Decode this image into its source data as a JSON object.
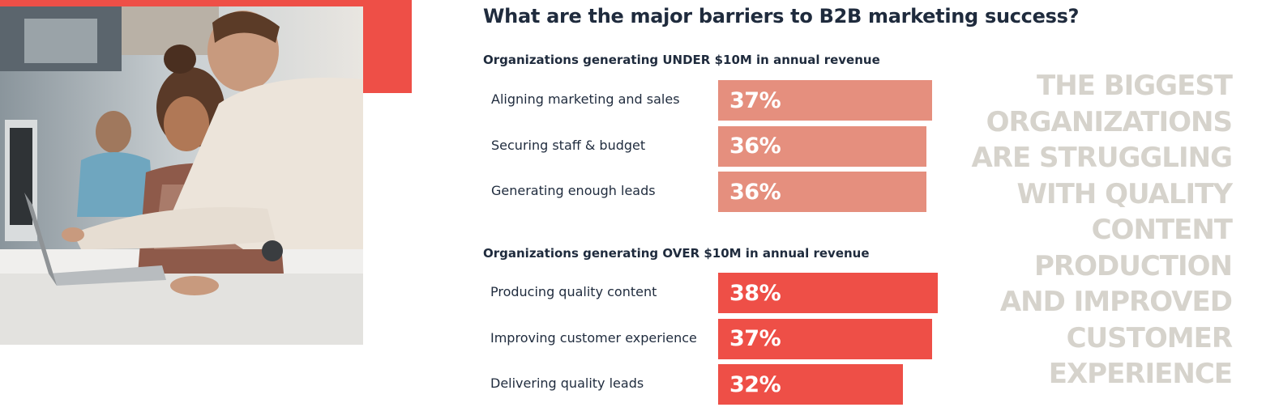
{
  "chart_data": {
    "type": "bar",
    "orientation": "horizontal",
    "title": "What are the major barriers to B2B marketing success?",
    "value_unit": "%",
    "groups": [
      {
        "heading": "Organizations generating UNDER $10M in annual revenue",
        "color": "#e58f7e",
        "categories": [
          "Aligning marketing and sales",
          "Securing staff & budget",
          "Generating enough leads"
        ],
        "values": [
          37,
          36,
          36
        ],
        "labels": [
          "37%",
          "36%",
          "36%"
        ]
      },
      {
        "heading": "Organizations generating OVER $10M in annual revenue",
        "color": "#ee4f47",
        "categories": [
          "Producing quality content",
          "Improving customer experience",
          "Delivering quality leads"
        ],
        "values": [
          38,
          37,
          32
        ],
        "labels": [
          "38%",
          "37%",
          "32%"
        ]
      }
    ]
  },
  "callout": {
    "lines": [
      "THE BIGGEST",
      "ORGANIZATIONS",
      "ARE STRUGGLING",
      "WITH QUALITY",
      "CONTENT",
      "PRODUCTION",
      "AND IMPROVED",
      "CUSTOMER",
      "EXPERIENCE"
    ]
  },
  "colors": {
    "accent": "#ee4f47",
    "text": "#1f2b3d",
    "callout": "#d6d3cc"
  },
  "photo": {
    "icon": "office-team-photo"
  }
}
